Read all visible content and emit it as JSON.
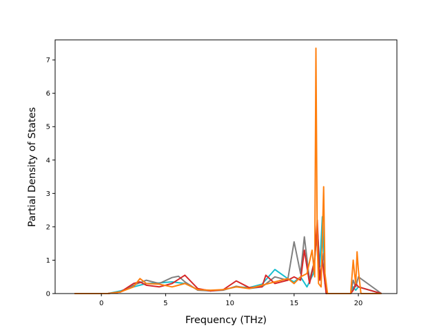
{
  "chart_data": {
    "type": "line",
    "title": "",
    "xlabel": "Frequency (THz)",
    "ylabel": "Partial Density of States",
    "xlim": [
      -3.6,
      23.0
    ],
    "ylim": [
      0,
      7.6
    ],
    "xticks": [
      0,
      5,
      10,
      15,
      20
    ],
    "yticks": [
      0,
      1,
      2,
      3,
      4,
      5,
      6,
      7
    ],
    "grid": false,
    "legend": "none",
    "colors": [
      "#1f77b4",
      "#17becf",
      "#8c564b",
      "#7f7f7f",
      "#d62728",
      "#bcbd22",
      "#ff7f0e"
    ],
    "series": [
      {
        "color": "#17becf",
        "x": [
          -2.1,
          0.5,
          1.5,
          2.5,
          3.5,
          4.5,
          5.5,
          6.5,
          7.5,
          8.5,
          9.5,
          10.5,
          11.5,
          12.5,
          13.5,
          14.5,
          15.0,
          15.5,
          16.0,
          16.5,
          16.8,
          17.0,
          17.2,
          17.4,
          17.6,
          19.4,
          19.6,
          19.8,
          20.0,
          21.8
        ],
        "y": [
          0,
          0,
          0.08,
          0.2,
          0.3,
          0.32,
          0.35,
          0.3,
          0.12,
          0.08,
          0.12,
          0.2,
          0.18,
          0.28,
          0.72,
          0.45,
          0.35,
          0.5,
          0.2,
          0.6,
          2.0,
          0.8,
          2.3,
          0.3,
          0,
          0,
          0.2,
          0.1,
          0.2,
          0
        ]
      },
      {
        "color": "#7f7f7f",
        "x": [
          -2.1,
          0.5,
          1.5,
          2.5,
          3.5,
          4.5,
          5.5,
          6.0,
          6.5,
          7.5,
          8.5,
          9.5,
          10.5,
          11.5,
          12.5,
          13.5,
          14.5,
          15.0,
          15.5,
          15.8,
          16.2,
          16.6,
          16.8,
          17.0,
          17.3,
          17.5,
          19.4,
          19.6,
          19.8,
          20.0,
          21.8
        ],
        "y": [
          0,
          0,
          0.05,
          0.25,
          0.4,
          0.3,
          0.48,
          0.52,
          0.35,
          0.1,
          0.08,
          0.1,
          0.22,
          0.15,
          0.2,
          0.5,
          0.4,
          1.55,
          0.6,
          1.7,
          0.4,
          1.0,
          2.0,
          0.5,
          1.2,
          0,
          0,
          0.4,
          0.2,
          0.5,
          0
        ]
      },
      {
        "color": "#d62728",
        "x": [
          -2.1,
          0.5,
          1.5,
          2.5,
          3.0,
          3.5,
          4.5,
          5.5,
          6.5,
          7.5,
          8.5,
          9.5,
          10.5,
          11.5,
          12.5,
          12.8,
          13.5,
          14.5,
          15.0,
          15.5,
          15.8,
          16.2,
          16.6,
          16.8,
          17.0,
          17.2,
          17.5,
          19.4,
          19.6,
          19.8,
          20.0,
          21.8
        ],
        "y": [
          0,
          0,
          0.05,
          0.3,
          0.35,
          0.25,
          0.2,
          0.3,
          0.55,
          0.15,
          0.08,
          0.12,
          0.38,
          0.18,
          0.2,
          0.55,
          0.3,
          0.4,
          0.5,
          0.4,
          1.3,
          0.3,
          1.0,
          2.2,
          0.4,
          1.0,
          0,
          0,
          0.1,
          0.3,
          0.2,
          0
        ]
      },
      {
        "color": "#ff7f0e",
        "x": [
          -2.1,
          0.5,
          1.5,
          2.5,
          3.0,
          3.5,
          4.5,
          5.5,
          6.5,
          7.5,
          8.5,
          9.5,
          10.5,
          11.5,
          12.5,
          13.5,
          14.5,
          15.0,
          15.5,
          16.0,
          16.4,
          16.6,
          16.7,
          16.8,
          16.9,
          17.1,
          17.3,
          17.4,
          17.6,
          19.4,
          19.6,
          19.7,
          19.8,
          19.9,
          20.0,
          20.2,
          21.8
        ],
        "y": [
          0,
          0,
          0.05,
          0.2,
          0.45,
          0.3,
          0.28,
          0.2,
          0.3,
          0.12,
          0.1,
          0.12,
          0.2,
          0.15,
          0.25,
          0.35,
          0.45,
          0.3,
          0.5,
          0.6,
          1.3,
          0.5,
          7.35,
          1.5,
          0.3,
          0.2,
          3.2,
          0.6,
          0,
          0,
          1.0,
          0.6,
          0.3,
          1.25,
          0.7,
          0,
          0
        ]
      }
    ]
  }
}
